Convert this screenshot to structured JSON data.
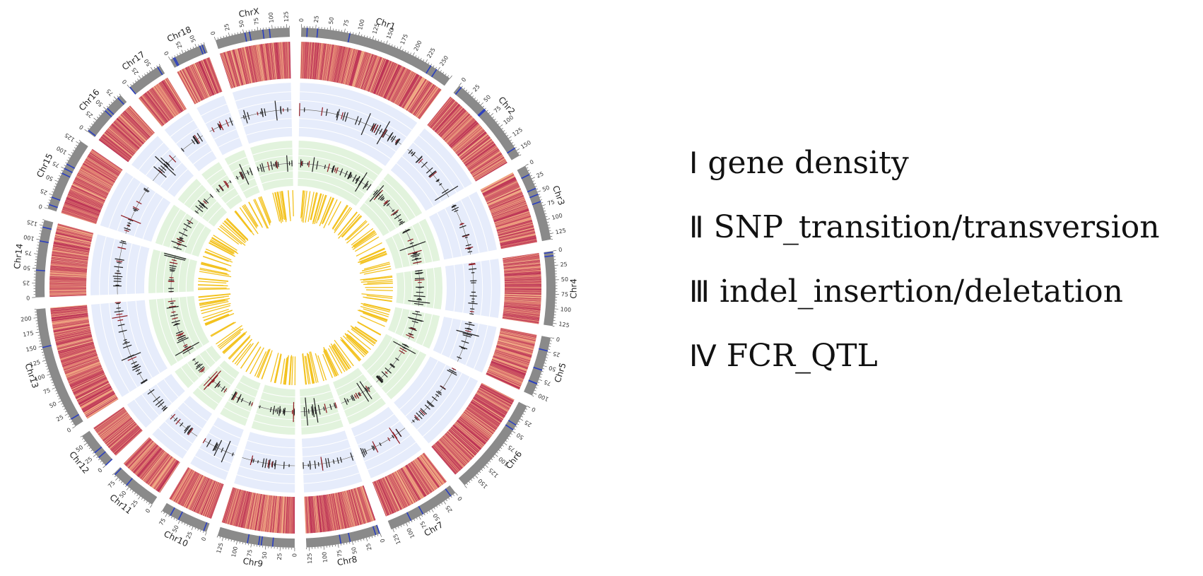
{
  "colors": {
    "ideogram": "#8a8a8a",
    "ideogram_band": "#2b3fbf",
    "heat_low": "#f7e3a3",
    "heat_mid": "#ee9a7a",
    "heat_high": "#b8284f",
    "track2_bg": "#e6ecfb",
    "track3_bg": "#e2f3dd",
    "grid": "#ffffff",
    "qtl": "#f3c21e",
    "mark_dark": "#222222",
    "mark_red": "#8e1b22"
  },
  "chromosomes": [
    {
      "name": "Chr1",
      "length": 275,
      "ticks": [
        "0",
        "25",
        "50",
        "75",
        "100",
        "125",
        "150",
        "175",
        "200",
        "225",
        "250"
      ]
    },
    {
      "name": "Chr2",
      "length": 160,
      "ticks": [
        "0",
        "25",
        "50",
        "75",
        "100",
        "125",
        "150"
      ]
    },
    {
      "name": "Chr3",
      "length": 135,
      "ticks": [
        "0",
        "25",
        "50",
        "75",
        "100",
        "125"
      ]
    },
    {
      "name": "Chr4",
      "length": 130,
      "ticks": [
        "0",
        "25",
        "50",
        "75",
        "100",
        "125"
      ]
    },
    {
      "name": "Chr5",
      "length": 105,
      "ticks": [
        "0",
        "25",
        "50",
        "75",
        "100"
      ]
    },
    {
      "name": "Chr6",
      "length": 175,
      "ticks": [
        "0",
        "25",
        "50",
        "75",
        "100",
        "125",
        "150"
      ]
    },
    {
      "name": "Chr7",
      "length": 128,
      "ticks": [
        "0",
        "25",
        "50",
        "75",
        "100",
        "125"
      ]
    },
    {
      "name": "Chr8",
      "length": 130,
      "ticks": [
        "0",
        "25",
        "50",
        "75",
        "100",
        "125"
      ]
    },
    {
      "name": "Chr9",
      "length": 135,
      "ticks": [
        "0",
        "25",
        "50",
        "75",
        "100",
        "125"
      ]
    },
    {
      "name": "Chr10",
      "length": 85,
      "ticks": [
        "0",
        "25",
        "50",
        "75"
      ]
    },
    {
      "name": "Chr11",
      "length": 85,
      "ticks": [
        "0",
        "25",
        "50",
        "75"
      ]
    },
    {
      "name": "Chr12",
      "length": 65,
      "ticks": [
        "0",
        "25",
        "50"
      ]
    },
    {
      "name": "Chr13",
      "length": 215,
      "ticks": [
        "0",
        "25",
        "50",
        "75",
        "100",
        "125",
        "150",
        "175",
        "200"
      ]
    },
    {
      "name": "Chr14",
      "length": 135,
      "ticks": [
        "0",
        "25",
        "50",
        "75",
        "100",
        "125"
      ]
    },
    {
      "name": "Chr15",
      "length": 130,
      "ticks": [
        "0",
        "25",
        "50",
        "75",
        "100",
        "125"
      ]
    },
    {
      "name": "Chr16",
      "length": 85,
      "ticks": [
        "0",
        "25",
        "50",
        "75"
      ]
    },
    {
      "name": "Chr17",
      "length": 65,
      "ticks": [
        "0",
        "25",
        "50"
      ]
    },
    {
      "name": "Chr18",
      "length": 65,
      "ticks": [
        "0",
        "25",
        "50"
      ]
    },
    {
      "name": "ChrX",
      "length": 130,
      "ticks": [
        "0",
        "25",
        "50",
        "75",
        "100",
        "125"
      ]
    }
  ],
  "legend": [
    {
      "numeral": "Ⅰ",
      "label": "gene density"
    },
    {
      "numeral": "Ⅱ",
      "label": "SNP_transition/transversion"
    },
    {
      "numeral": "Ⅲ",
      "label": "indel_insertion/deletation"
    },
    {
      "numeral": "Ⅳ",
      "label": "FCR_QTL"
    }
  ]
}
